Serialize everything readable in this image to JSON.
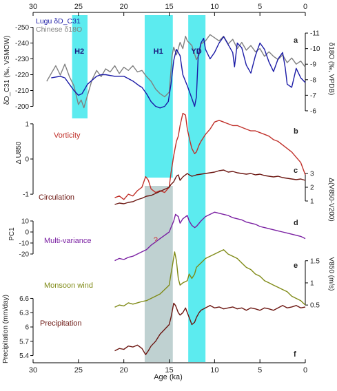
{
  "chart_data": [
    {
      "panel": "a",
      "type": "line",
      "xlabel": "Age (ka)",
      "x_ticks": [
        30,
        25,
        20,
        15,
        10,
        5,
        0
      ],
      "xlim": [
        30,
        0
      ],
      "ylabel_left": "δD_C31 (‰, VSMOW)",
      "ylabel_right": "δ18O (‰, VPDB)",
      "ylim_left": [
        -195,
        -255
      ],
      "yticks_left": [
        -250,
        -240,
        -230,
        -220,
        -210,
        -200
      ],
      "ylim_right": [
        -5.6,
        -11.8
      ],
      "yticks_right": [
        -11,
        -10,
        -9,
        -8,
        -7,
        -6
      ],
      "legend": [
        "Lugu δD_C31",
        "Chinese δ18O"
      ],
      "series": [
        {
          "name": "Lugu δD_C31",
          "color": "#1a1aa6",
          "axis": "left",
          "x": [
            28,
            27,
            26.5,
            26,
            25.5,
            25,
            24.6,
            24,
            23,
            22.5,
            22,
            21,
            20,
            19,
            18.3,
            18,
            17.5,
            17,
            16.5,
            16,
            15.5,
            15.1,
            14.8,
            14.5,
            14.2,
            13.8,
            13.5,
            13,
            12.5,
            12.2,
            12,
            11.8,
            11.5,
            11.2,
            11,
            10.5,
            10,
            9.5,
            9,
            8.5,
            8,
            7.8,
            7.5,
            7,
            6.5,
            6,
            5.5,
            5,
            4.5,
            4,
            3.5,
            3,
            2.5,
            2.2,
            2,
            1.5,
            1,
            0.5,
            0
          ],
          "y": [
            -218,
            -219,
            -218,
            -214,
            -210,
            -207,
            -208,
            -214,
            -219,
            -220,
            -220,
            -219,
            -219,
            -216,
            -213,
            -212,
            -208,
            -203,
            -200,
            -199,
            -200,
            -203,
            -214,
            -229,
            -236,
            -232,
            -220,
            -213,
            -205,
            -200,
            -206,
            -232,
            -240,
            -243,
            -236,
            -230,
            -234,
            -240,
            -244,
            -239,
            -234,
            -225,
            -240,
            -237,
            -226,
            -221,
            -232,
            -240,
            -236,
            -228,
            -222,
            -230,
            -234,
            -224,
            -214,
            -212,
            -224,
            -218,
            -215
          ]
        },
        {
          "name": "Chinese δ18O",
          "color": "#808080",
          "axis": "right",
          "x": [
            28.5,
            28,
            27.5,
            27,
            26.5,
            26,
            25.5,
            25,
            24.7,
            24.4,
            24,
            23.5,
            23,
            22.5,
            22,
            21.5,
            21,
            20.5,
            20,
            19.5,
            19,
            18.5,
            18,
            17.5,
            17,
            16.5,
            16,
            15.5,
            15,
            14.8,
            14.7,
            14.5,
            14.2,
            13.8,
            13.5,
            13.2,
            13,
            12.5,
            12,
            11.7,
            11.5,
            11,
            10.5,
            10,
            9.5,
            9,
            8.5,
            8,
            7.5,
            7,
            6.5,
            6,
            5.5,
            5,
            4.5,
            4,
            3.5,
            3,
            2.5,
            2,
            1.5,
            1,
            0.5,
            0
          ],
          "y": [
            -7.9,
            -8.4,
            -8.9,
            -8.3,
            -9.0,
            -8.2,
            -7.6,
            -6.4,
            -6.7,
            -6.2,
            -7.0,
            -8.0,
            -8.6,
            -8.2,
            -8.7,
            -8.5,
            -8.9,
            -8.4,
            -8.8,
            -8.6,
            -8.9,
            -8.5,
            -8.6,
            -8.2,
            -7.9,
            -7.4,
            -7.1,
            -6.9,
            -7.2,
            -8.6,
            -9.5,
            -10.1,
            -9.6,
            -10.4,
            -10.0,
            -10.8,
            -10.5,
            -10.2,
            -9.3,
            -9.6,
            -10.3,
            -10.5,
            -10.9,
            -10.7,
            -10.5,
            -10.8,
            -10.3,
            -10.6,
            -10.0,
            -10.4,
            -9.9,
            -10.2,
            -9.8,
            -10.0,
            -9.5,
            -9.8,
            -9.5,
            -9.3,
            -9.6,
            -9.1,
            -9.4,
            -9.0,
            -9.2,
            -8.8
          ]
        }
      ],
      "annotations": [
        "H2",
        "H1",
        "YD",
        "a"
      ]
    },
    {
      "panel": "b",
      "type": "line",
      "ylabel": "Δ U850",
      "series_label": "Vorticity",
      "ylim": [
        -1.35,
        1.35
      ],
      "yticks": [
        -1,
        0,
        1
      ],
      "series": [
        {
          "color": "#c0302a",
          "x": [
            21,
            20.5,
            20,
            19.5,
            19,
            18.5,
            18,
            17.6,
            17.3,
            17,
            16.5,
            16,
            15.5,
            15,
            14.8,
            14.5,
            14.2,
            14,
            13.8,
            13.5,
            13.2,
            13,
            12.7,
            12.5,
            12.2,
            12,
            11.7,
            11.5,
            11,
            10.5,
            10,
            9.5,
            9,
            8.5,
            8,
            7.5,
            7,
            6.5,
            6,
            5.5,
            5,
            4.5,
            4,
            3.5,
            3,
            2.5,
            2,
            1.5,
            1,
            0.5,
            0
          ],
          "y": [
            -1.1,
            -1.05,
            -1.15,
            -1.0,
            -1.05,
            -0.9,
            -0.8,
            -0.5,
            -0.6,
            -0.85,
            -0.95,
            -0.9,
            -0.95,
            -0.8,
            -0.4,
            0.1,
            0.5,
            0.65,
            0.95,
            1.3,
            1.25,
            0.85,
            0.5,
            0.3,
            0.15,
            0.2,
            0.4,
            0.5,
            0.7,
            0.85,
            1.05,
            1.1,
            1.05,
            1.0,
            0.95,
            0.95,
            0.9,
            0.85,
            0.8,
            0.8,
            0.75,
            0.7,
            0.65,
            0.55,
            0.5,
            0.4,
            0.3,
            0.2,
            0.05,
            -0.1,
            -0.45
          ]
        }
      ]
    },
    {
      "panel": "c",
      "type": "line",
      "ylabel": "Δ(V850-V200)",
      "series_label": "Circulation",
      "ylim": [
        0.5,
        3.4
      ],
      "yticks": [
        1,
        2,
        3
      ],
      "series": [
        {
          "color": "#6b1510",
          "x": [
            21,
            20.5,
            20,
            19.5,
            19,
            18.5,
            18,
            17.5,
            17,
            16.5,
            16,
            15.5,
            15,
            14.8,
            14.5,
            14.2,
            14,
            13.8,
            13.5,
            13,
            12.8,
            12.5,
            12.2,
            12,
            11.5,
            11,
            10.5,
            10,
            9.5,
            9,
            8.5,
            8,
            7.5,
            7,
            6.5,
            6,
            5.5,
            5,
            4.5,
            4,
            3.5,
            3,
            2.5,
            2,
            1.5,
            1,
            0.5,
            0
          ],
          "y": [
            0.75,
            0.85,
            0.8,
            0.9,
            0.95,
            1.1,
            1.2,
            1.35,
            1.4,
            1.55,
            1.7,
            1.85,
            2.0,
            2.2,
            2.4,
            2.8,
            2.9,
            2.5,
            2.75,
            3.0,
            2.9,
            2.8,
            2.85,
            2.9,
            2.95,
            3.0,
            3.05,
            3.1,
            3.2,
            3.25,
            3.1,
            3.15,
            3.05,
            3.0,
            2.95,
            3.0,
            2.9,
            2.95,
            2.85,
            2.8,
            2.75,
            2.8,
            2.7,
            2.65,
            2.6,
            2.55,
            2.6,
            2.5
          ]
        }
      ]
    },
    {
      "panel": "d",
      "type": "line",
      "ylabel": "PC1",
      "series_label": "Multi-variance",
      "ylim": [
        -30,
        20
      ],
      "yticks": [
        -20,
        -10,
        0,
        10
      ],
      "series": [
        {
          "color": "#7a1fa2",
          "x": [
            21,
            20.5,
            20,
            19.5,
            19,
            18.5,
            18,
            17.5,
            17,
            16.5,
            16,
            15.5,
            15,
            14.8,
            14.5,
            14.3,
            14,
            13.8,
            13.5,
            13,
            12.8,
            12.5,
            12.2,
            12,
            11.5,
            11,
            10.5,
            10,
            9.5,
            9,
            8.5,
            8,
            7.5,
            7,
            6.5,
            6,
            5.5,
            5,
            4.5,
            4,
            3.5,
            3,
            2.5,
            2,
            1.5,
            1,
            0.5,
            0
          ],
          "y": [
            -26,
            -24,
            -25,
            -23,
            -22,
            -20,
            -18,
            -16,
            -12,
            -9,
            -6,
            -3,
            0,
            4,
            10,
            16,
            14,
            8,
            12,
            15,
            10,
            6,
            4,
            5,
            10,
            14,
            16,
            18,
            17,
            16,
            15,
            13,
            12,
            11,
            9,
            8,
            7,
            5,
            4,
            3,
            2,
            1,
            0,
            -1,
            -2,
            -3,
            -4,
            -6
          ]
        }
      ],
      "annotations": [
        "?",
        "d"
      ]
    },
    {
      "panel": "e",
      "type": "line",
      "ylabel": "V850 (m/s)",
      "series_label": "Monsoon wind",
      "ylim": [
        0.3,
        1.9
      ],
      "yticks": [
        0.5,
        1.0,
        1.5
      ],
      "series": [
        {
          "color": "#7f8a16",
          "x": [
            21,
            20.5,
            20,
            19.5,
            19,
            18.5,
            18,
            17.5,
            17,
            16.5,
            16,
            15.5,
            15,
            14.8,
            14.6,
            14.4,
            14.2,
            14,
            13.8,
            13.5,
            13,
            12.8,
            12.5,
            12.2,
            12,
            11.5,
            11,
            10.5,
            10,
            9.5,
            9,
            8.5,
            8,
            7.5,
            7,
            6.5,
            6,
            5.5,
            5,
            4.5,
            4,
            3.5,
            3,
            2.5,
            2,
            1.5,
            1,
            0.5,
            0
          ],
          "y": [
            0.45,
            0.5,
            0.48,
            0.55,
            0.52,
            0.55,
            0.58,
            0.6,
            0.65,
            0.7,
            0.75,
            0.85,
            0.95,
            1.2,
            1.45,
            1.7,
            1.5,
            1.1,
            0.95,
            1.0,
            1.05,
            1.2,
            1.1,
            1.2,
            1.35,
            1.45,
            1.55,
            1.6,
            1.65,
            1.7,
            1.75,
            1.65,
            1.6,
            1.55,
            1.45,
            1.35,
            1.3,
            1.2,
            1.15,
            1.05,
            1.0,
            0.95,
            0.9,
            0.85,
            0.8,
            0.7,
            0.65,
            0.6,
            0.5
          ]
        }
      ]
    },
    {
      "panel": "f",
      "type": "line",
      "ylabel": "Precipitation (mm/day)",
      "series_label": "Precipitation",
      "ylim": [
        5.35,
        6.65
      ],
      "yticks": [
        5.4,
        5.7,
        6.0,
        6.3,
        6.6
      ],
      "series": [
        {
          "color": "#6b1510",
          "x": [
            21,
            20.5,
            20,
            19.5,
            19,
            18.5,
            18,
            17.6,
            17.3,
            17,
            16.5,
            16,
            15.5,
            15,
            14.8,
            14.5,
            14.3,
            14,
            13.8,
            13.5,
            13.2,
            13,
            12.7,
            12.5,
            12.2,
            12,
            11.7,
            11.5,
            11,
            10.5,
            10,
            9.5,
            9,
            8.5,
            8,
            7.5,
            7,
            6.5,
            6,
            5.5,
            5,
            4.5,
            4,
            3.5,
            3,
            2.5,
            2,
            1.5,
            1,
            0.5,
            0
          ],
          "y": [
            5.5,
            5.55,
            5.53,
            5.6,
            5.58,
            5.62,
            5.55,
            5.42,
            5.5,
            5.6,
            5.7,
            5.85,
            5.95,
            6.05,
            6.2,
            6.5,
            6.45,
            6.3,
            6.25,
            6.3,
            6.4,
            6.3,
            6.15,
            6.05,
            6.1,
            6.2,
            6.3,
            6.35,
            6.4,
            6.45,
            6.4,
            6.42,
            6.38,
            6.4,
            6.42,
            6.38,
            6.4,
            6.35,
            6.4,
            6.38,
            6.35,
            6.4,
            6.38,
            6.35,
            6.4,
            6.45,
            6.4,
            6.42,
            6.45,
            6.4,
            6.42
          ]
        }
      ]
    }
  ],
  "shading": [
    {
      "label": "H2",
      "x_from": 24,
      "x_to": 25.7,
      "color": "#40e8ec",
      "panels": "a"
    },
    {
      "label": "H1",
      "x_from": 14.6,
      "x_to": 17.7,
      "color": "#40e8ec",
      "panels": "a-c"
    },
    {
      "label": "",
      "x_from": 14.6,
      "x_to": 17.7,
      "color": "#b8cccc",
      "panels": "d-f"
    },
    {
      "label": "YD",
      "x_from": 11.0,
      "x_to": 12.9,
      "color": "#40e8ec",
      "panels": "a-f"
    }
  ]
}
